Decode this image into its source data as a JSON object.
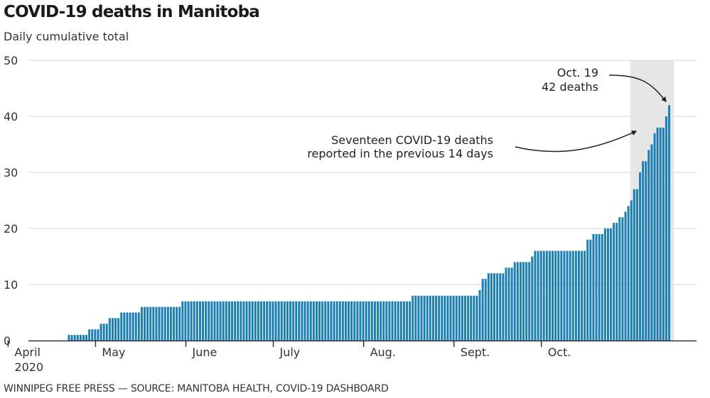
{
  "header": {
    "title": "COVID-19 deaths in Manitoba",
    "subtitle": "Daily cumulative total"
  },
  "footer": {
    "source": "WINNIPEG FREE PRESS — SOURCE: MANITOBA HEALTH, COVID-19 DASHBOARD"
  },
  "colors": {
    "bar": "#1b7fb2",
    "highlight_band": "#e6e6e6",
    "grid": "#e4e4e4",
    "axis": "#333333"
  },
  "chart_data": {
    "type": "bar",
    "title": "COVID-19 deaths in Manitoba",
    "subtitle": "Daily cumulative total",
    "xlabel": "",
    "ylabel": "",
    "ylim": [
      0,
      50
    ],
    "yticks": [
      0,
      10,
      20,
      30,
      40,
      50
    ],
    "grid": true,
    "x_start_date": "2020-03-27",
    "x_end_date": "2020-10-19",
    "x_domain_days": {
      "start_offset_from_mar1": -5,
      "end_offset_from_mar1": 240
    },
    "xticks": [
      {
        "label": "April",
        "sublabel": "2020",
        "day_offset": 5
      },
      {
        "label": "May",
        "sublabel": "",
        "day_offset": 35
      },
      {
        "label": "June",
        "sublabel": "",
        "day_offset": 66
      },
      {
        "label": "July",
        "sublabel": "",
        "day_offset": 96
      },
      {
        "label": "Aug.",
        "sublabel": "",
        "day_offset": 127
      },
      {
        "label": "Sept.",
        "sublabel": "",
        "day_offset": 158
      },
      {
        "label": "Oct.",
        "sublabel": "",
        "day_offset": 188
      }
    ],
    "series_runs_note": "Daily cumulative deaths starting 2020-03-27, run-length encoded as [value, number_of_days]",
    "series_runs": [
      [
        1,
        7
      ],
      [
        2,
        4
      ],
      [
        3,
        3
      ],
      [
        4,
        4
      ],
      [
        5,
        7
      ],
      [
        6,
        14
      ],
      [
        7,
        79
      ],
      [
        8,
        23
      ],
      [
        9,
        1
      ],
      [
        11,
        2
      ],
      [
        12,
        6
      ],
      [
        13,
        3
      ],
      [
        14,
        6
      ],
      [
        15,
        1
      ],
      [
        16,
        18
      ],
      [
        18,
        2
      ],
      [
        19,
        4
      ],
      [
        20,
        3
      ],
      [
        21,
        2
      ],
      [
        22,
        2
      ],
      [
        23,
        1
      ],
      [
        24,
        1
      ],
      [
        25,
        1
      ],
      [
        27,
        2
      ],
      [
        30,
        1
      ],
      [
        32,
        2
      ],
      [
        34,
        1
      ],
      [
        35,
        1
      ],
      [
        37,
        1
      ],
      [
        38,
        3
      ],
      [
        40,
        1
      ],
      [
        42,
        1
      ]
    ],
    "highlight_range": {
      "from": "2020-10-06",
      "to": "2020-10-19",
      "label": "previous 14 days"
    },
    "annotations": [
      {
        "lines": [
          "Oct. 19",
          "42 deaths"
        ],
        "target_date": "2020-10-19",
        "target_value": 42
      },
      {
        "lines": [
          "Seventeen COVID-19 deaths",
          "reported in the previous 14 days"
        ],
        "target": "highlight_range"
      }
    ]
  }
}
